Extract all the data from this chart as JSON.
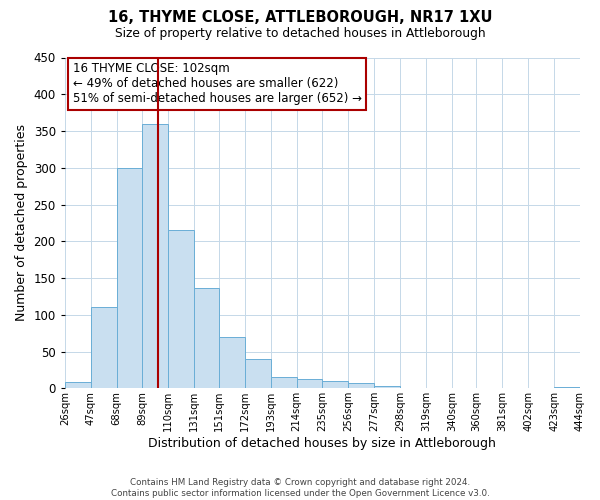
{
  "title": "16, THYME CLOSE, ATTLEBOROUGH, NR17 1XU",
  "subtitle": "Size of property relative to detached houses in Attleborough",
  "xlabel": "Distribution of detached houses by size in Attleborough",
  "ylabel": "Number of detached properties",
  "bar_lefts": [
    26,
    47,
    68,
    89,
    110,
    131,
    151,
    172,
    193,
    214,
    235,
    256,
    277,
    298,
    319,
    340,
    360,
    381,
    402,
    423
  ],
  "bar_widths": [
    21,
    21,
    21,
    21,
    21,
    20,
    21,
    21,
    21,
    21,
    21,
    21,
    21,
    21,
    21,
    20,
    21,
    21,
    21,
    21
  ],
  "bar_heights": [
    8,
    110,
    300,
    360,
    215,
    137,
    70,
    40,
    15,
    13,
    10,
    7,
    3,
    0,
    0,
    0,
    0,
    0,
    0,
    2
  ],
  "bar_color": "#c9dff0",
  "bar_edgecolor": "#6aaed6",
  "ylim": [
    0,
    450
  ],
  "yticks": [
    0,
    50,
    100,
    150,
    200,
    250,
    300,
    350,
    400,
    450
  ],
  "xtick_labels": [
    "26sqm",
    "47sqm",
    "68sqm",
    "89sqm",
    "110sqm",
    "131sqm",
    "151sqm",
    "172sqm",
    "193sqm",
    "214sqm",
    "235sqm",
    "256sqm",
    "277sqm",
    "298sqm",
    "319sqm",
    "340sqm",
    "360sqm",
    "381sqm",
    "402sqm",
    "423sqm",
    "444sqm"
  ],
  "xtick_positions": [
    26,
    47,
    68,
    89,
    110,
    131,
    151,
    172,
    193,
    214,
    235,
    256,
    277,
    298,
    319,
    340,
    360,
    381,
    402,
    423,
    444
  ],
  "xlim_left": 26,
  "xlim_right": 444,
  "vline_x": 102,
  "vline_color": "#aa0000",
  "annotation_text": "16 THYME CLOSE: 102sqm\n← 49% of detached houses are smaller (622)\n51% of semi-detached houses are larger (652) →",
  "annotation_box_edgecolor": "#aa0000",
  "footer_line1": "Contains HM Land Registry data © Crown copyright and database right 2024.",
  "footer_line2": "Contains public sector information licensed under the Open Government Licence v3.0.",
  "background_color": "#ffffff",
  "grid_color": "#c5d8e8"
}
